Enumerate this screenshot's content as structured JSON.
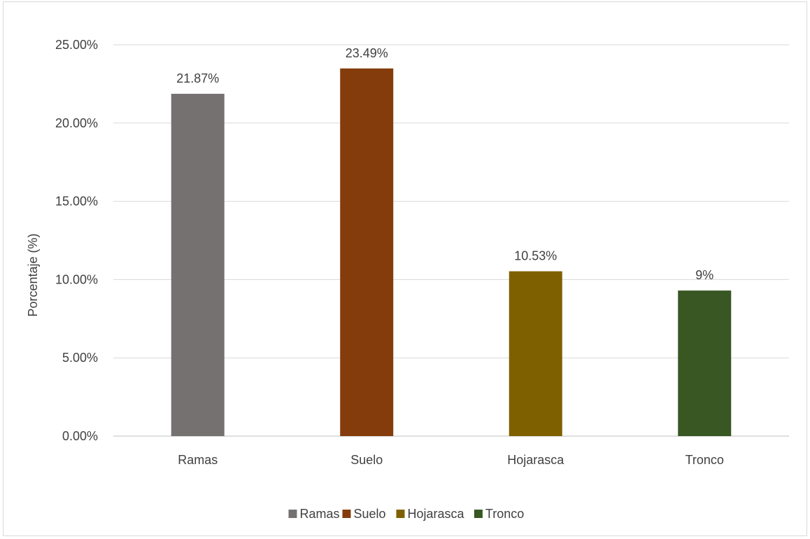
{
  "chart_data": {
    "type": "bar",
    "categories": [
      "Ramas",
      "Suelo",
      "Hojarasca",
      "Tronco"
    ],
    "values": [
      21.87,
      23.49,
      10.53,
      9.3
    ],
    "data_labels": [
      "21.87%",
      "23.49%",
      "10.53%",
      "9%"
    ],
    "colors": [
      "#767171",
      "#843C0C",
      "#7F6000",
      "#385723"
    ],
    "ylabel": "Porcentaje (%)",
    "xlabel": "",
    "ylim": [
      0,
      25
    ],
    "y_ticks": [
      0,
      5,
      10,
      15,
      20,
      25
    ],
    "y_tick_labels": [
      "0.00%",
      "5.00%",
      "10.00%",
      "15.00%",
      "20.00%",
      "25.00%"
    ],
    "grid": true,
    "legend": {
      "placement": "bottom",
      "entries": [
        "Ramas",
        "Suelo",
        "Hojarasca",
        "Tronco"
      ]
    }
  }
}
